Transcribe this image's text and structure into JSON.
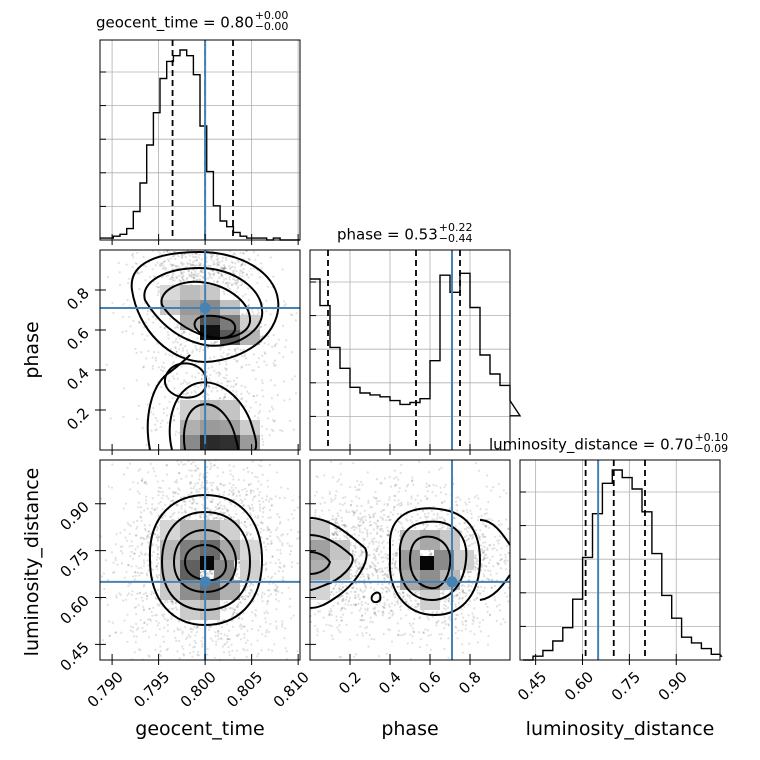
{
  "chart_data": {
    "type": "corner",
    "parameters": [
      "geocent_time",
      "phase",
      "luminosity_distance"
    ],
    "truths": [
      0.8,
      0.71,
      0.65
    ],
    "truth_color": "#4682b4",
    "titles": [
      {
        "name": "geocent_time",
        "median": "0.80",
        "plus": "+0.00",
        "minus": "−0.00"
      },
      {
        "name": "phase",
        "median": "0.53",
        "plus": "+0.22",
        "minus": "−0.44"
      },
      {
        "name": "luminosity_distance",
        "median": "0.70",
        "plus": "+0.10",
        "minus": "−0.09"
      }
    ],
    "quantiles": [
      [
        0.7965,
        0.8,
        0.803
      ],
      [
        0.09,
        0.53,
        0.75
      ],
      [
        0.61,
        0.7,
        0.8
      ]
    ],
    "ranges": [
      [
        0.7887,
        0.8102
      ],
      [
        0.0,
        1.0
      ],
      [
        0.4,
        1.04
      ]
    ],
    "ticks": [
      {
        "values": [
          0.79,
          0.795,
          0.8,
          0.805,
          0.81
        ],
        "labels": [
          "0.790",
          "0.795",
          "0.800",
          "0.805",
          "0.810"
        ]
      },
      {
        "values": [
          0.2,
          0.4,
          0.6,
          0.8
        ],
        "labels": [
          "0.2",
          "0.4",
          "0.6",
          "0.8"
        ]
      },
      {
        "values": [
          0.45,
          0.6,
          0.75,
          0.9
        ],
        "labels": [
          "0.45",
          "0.60",
          "0.75",
          "0.90"
        ]
      }
    ],
    "histograms": [
      {
        "edges_start": 0.7887,
        "edges_step": 0.000717,
        "counts": [
          0.01,
          0.01,
          0.02,
          0.03,
          0.06,
          0.15,
          0.3,
          0.5,
          0.67,
          0.85,
          0.94,
          0.97,
          1.0,
          0.97,
          0.87,
          0.6,
          0.36,
          0.18,
          0.1,
          0.07,
          0.04,
          0.02,
          0.01,
          0.01,
          0.01,
          0.0,
          0.01,
          0.0,
          0.0,
          0.0
        ]
      },
      {
        "edges_start": 0.0,
        "edges_step": 0.05,
        "counts": [
          0.9,
          0.76,
          0.54,
          0.43,
          0.33,
          0.3,
          0.29,
          0.28,
          0.26,
          0.24,
          0.25,
          0.27,
          0.47,
          0.92,
          0.83,
          0.93,
          0.75,
          0.5,
          0.4,
          0.34,
          0.26,
          0.18
        ]
      },
      {
        "edges_start": 0.41,
        "edges_step": 0.0317,
        "counts": [
          0.0,
          0.02,
          0.05,
          0.1,
          0.17,
          0.32,
          0.54,
          0.77,
          0.93,
          1.0,
          0.96,
          0.9,
          0.78,
          0.56,
          0.34,
          0.22,
          0.12,
          0.09,
          0.06,
          0.03,
          0.02
        ]
      }
    ],
    "axis_labels": [
      "geocent_time",
      "phase",
      "luminosity_distance"
    ],
    "grid": true
  }
}
